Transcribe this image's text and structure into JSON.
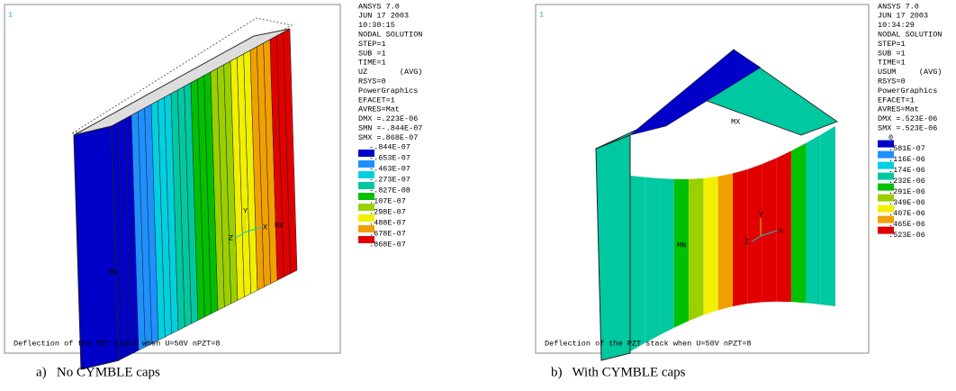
{
  "panels": [
    {
      "corner": "1",
      "header": [
        "ANSYS 7.0",
        "JUN 17 2003",
        "10:30:15",
        "NODAL SOLUTION",
        "STEP=1",
        "SUB =1",
        "TIME=1",
        "UZ       (AVG)",
        "RSYS=0",
        "PowerGraphics",
        "EFACET=1",
        "AVRES=Mat",
        "DMX =.223E-06",
        "SMN =-.844E-07",
        "SMX =.868E-07"
      ],
      "legend": [
        "-.844E-07",
        "-.653E-07",
        "-.463E-07",
        "-.273E-07",
        "-.827E-08",
        ".107E-07",
        ".298E-07",
        ".488E-07",
        ".678E-07",
        ".868E-07"
      ],
      "min_label": "MN",
      "max_label": "MX",
      "axes": [
        "Y",
        "Z",
        "X"
      ],
      "footer": "Deflection of the PZT stack when U=50V nPZT=8",
      "caption": "a)   No CYMBLE caps"
    },
    {
      "corner": "1",
      "header": [
        "ANSYS 7.0",
        "JUN 17 2003",
        "10:34:29",
        "NODAL SOLUTION",
        "STEP=1",
        "SUB =1",
        "TIME=1",
        "USUM     (AVG)",
        "RSYS=0",
        "PowerGraphics",
        "EFACET=1",
        "AVRES=Mat",
        "DMX =.523E-06",
        "SMX =.523E-06"
      ],
      "legend": [
        "0",
        ".581E-07",
        ".116E-06",
        ".174E-06",
        ".232E-06",
        ".291E-06",
        ".349E-06",
        ".407E-06",
        ".465E-06",
        ".523E-06"
      ],
      "min_label": "MN",
      "max_label": "MX",
      "axes": [
        "Y",
        "Z",
        "X"
      ],
      "footer": "Deflection of the PZT stack when U=50V nPZT=8",
      "caption": "b)   With CYMBLE caps"
    }
  ],
  "palette": [
    "#0000c8",
    "#1e90ff",
    "#00d0e0",
    "#00c8a0",
    "#00c000",
    "#9ad000",
    "#f0f000",
    "#f0a000",
    "#e00000"
  ]
}
